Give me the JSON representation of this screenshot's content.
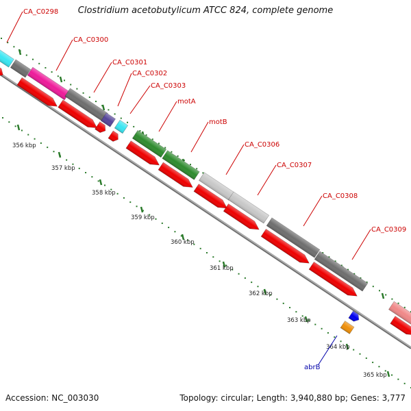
{
  "title": "Clostridium acetobutylicum ATCC 824, complete genome",
  "footer": {
    "accession": "Accession: NC_003030",
    "summary": "Topology: circular; Length: 3,940,880 bp; Genes: 3,777"
  },
  "colors": {
    "cds_red": "#ee0000",
    "label_red": "#cc0000",
    "label_blue": "#0000aa",
    "tick_green": "#2a7a2a",
    "backbone_gray": "#a8a8a8",
    "cyan": "#39e6f2",
    "magenta": "#ee1a9a",
    "dark_gray": "#6e6e6e",
    "purple": "#554499",
    "green": "#2e8b2e",
    "light_gray": "#c8c8c8",
    "pink": "#f08888",
    "blue": "#0000ee",
    "orange": "#f0900a"
  },
  "genes": [
    {
      "label": "CA_C0298"
    },
    {
      "label": "CA_C0300"
    },
    {
      "label": "CA_C0301"
    },
    {
      "label": "CA_C0302"
    },
    {
      "label": "CA_C0303"
    },
    {
      "label": "motA"
    },
    {
      "label": "motB"
    },
    {
      "label": "CA_C0306"
    },
    {
      "label": "CA_C0307"
    },
    {
      "label": "CA_C0308"
    },
    {
      "label": "CA_C0309"
    },
    {
      "label": "abrB"
    }
  ],
  "kbp_labels": [
    "356 kbp",
    "357 kbp",
    "358 kbp",
    "359 kbp",
    "360 kbp",
    "361 kbp",
    "362 kbp",
    "363 kbp",
    "364 kbp",
    "365 kbp"
  ]
}
